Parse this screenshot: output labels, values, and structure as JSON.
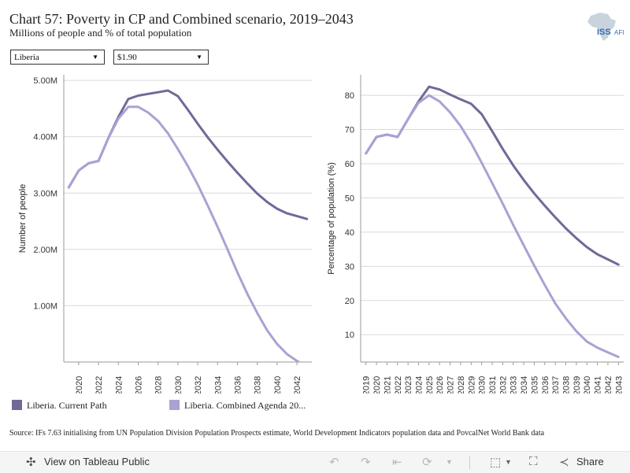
{
  "header": {
    "title": "Chart 57: Poverty in CP and Combined scenario, 2019–2043",
    "subtitle": "Millions of people and % of total population"
  },
  "logo": {
    "text": "ISS",
    "text2": "AFI"
  },
  "filters": {
    "country": {
      "value": "Liberia"
    },
    "threshold": {
      "value": "$1.90"
    }
  },
  "legend": {
    "items": [
      {
        "label": "Liberia. Current Path",
        "color": "#6e6a98"
      },
      {
        "label": "Liberia. Combined Agenda 20...",
        "color": "#a7a3d3"
      }
    ]
  },
  "source": "Source: IFs 7.63 initialising from UN Population Division Population Prospects estimate, World Development Indicators population data and PovcalNet World Bank data",
  "toolbar": {
    "view_label": "View on Tableau Public",
    "share_label": "Share"
  },
  "chart_data": [
    {
      "type": "line",
      "ylabel": "Number of people",
      "xlim": [
        2018.5,
        2043.5
      ],
      "ylim": [
        0,
        5100000
      ],
      "y_ticks": [
        1000000,
        2000000,
        3000000,
        4000000,
        5000000
      ],
      "y_tick_labels": [
        "1.00M",
        "2.00M",
        "3.00M",
        "4.00M",
        "5.00M"
      ],
      "x_ticks": [
        2020,
        2022,
        2024,
        2026,
        2028,
        2030,
        2032,
        2034,
        2036,
        2038,
        2040,
        2042
      ],
      "x_tick_labels": [
        "2020",
        "2022",
        "2024",
        "2026",
        "2028",
        "2030",
        "2032",
        "2034",
        "2036",
        "2038",
        "2040",
        "2042"
      ],
      "grid": true,
      "x": [
        2019,
        2020,
        2021,
        2022,
        2023,
        2024,
        2025,
        2026,
        2027,
        2028,
        2029,
        2030,
        2031,
        2032,
        2033,
        2034,
        2035,
        2036,
        2037,
        2038,
        2039,
        2040,
        2041,
        2042,
        2043
      ],
      "series": [
        {
          "name": "Liberia. Current Path",
          "color": "#6e6a98",
          "values": [
            3100000,
            3400000,
            3530000,
            3570000,
            3980000,
            4350000,
            4670000,
            4730000,
            4760000,
            4790000,
            4820000,
            4720000,
            4480000,
            4230000,
            3990000,
            3770000,
            3560000,
            3360000,
            3170000,
            2990000,
            2840000,
            2720000,
            2640000,
            2590000,
            2540000
          ]
        },
        {
          "name": "Liberia. Combined Agenda 20...",
          "color": "#a7a3d3",
          "values": [
            3100000,
            3400000,
            3530000,
            3570000,
            3980000,
            4320000,
            4530000,
            4530000,
            4430000,
            4280000,
            4060000,
            3780000,
            3480000,
            3150000,
            2780000,
            2400000,
            2000000,
            1590000,
            1210000,
            870000,
            560000,
            320000,
            140000,
            20000,
            -90000
          ]
        }
      ]
    },
    {
      "type": "line",
      "ylabel": "Percentage of population (%)",
      "xlim": [
        2018.5,
        2043.5
      ],
      "ylim": [
        2,
        86
      ],
      "y_ticks": [
        10,
        20,
        30,
        40,
        50,
        60,
        70,
        80
      ],
      "y_tick_labels": [
        "10",
        "20",
        "30",
        "40",
        "50",
        "60",
        "70",
        "80"
      ],
      "x_ticks": [
        2019,
        2020,
        2021,
        2022,
        2023,
        2024,
        2025,
        2026,
        2027,
        2028,
        2029,
        2030,
        2031,
        2032,
        2033,
        2034,
        2035,
        2036,
        2037,
        2038,
        2039,
        2040,
        2041,
        2042,
        2043
      ],
      "x_tick_labels": [
        "2019",
        "2020",
        "2021",
        "2022",
        "2023",
        "2024",
        "2025",
        "2026",
        "2027",
        "2028",
        "2029",
        "2030",
        "2031",
        "2032",
        "2033",
        "2034",
        "2035",
        "2036",
        "2037",
        "2038",
        "2039",
        "2040",
        "2041",
        "2042",
        "2043"
      ],
      "grid": true,
      "x": [
        2019,
        2020,
        2021,
        2022,
        2023,
        2024,
        2025,
        2026,
        2027,
        2028,
        2029,
        2030,
        2031,
        2032,
        2033,
        2034,
        2035,
        2036,
        2037,
        2038,
        2039,
        2040,
        2041,
        2042,
        2043
      ],
      "series": [
        {
          "name": "Liberia. Current Path",
          "color": "#6e6a98",
          "values": [
            63,
            67.8,
            68.5,
            67.8,
            73,
            78.2,
            82.5,
            81.7,
            80.2,
            78.8,
            77.5,
            74.5,
            69.5,
            64.3,
            59.5,
            55.2,
            51.3,
            47.7,
            44.3,
            41.1,
            38.2,
            35.6,
            33.5,
            32,
            30.5
          ]
        },
        {
          "name": "Liberia. Combined Agenda 20...",
          "color": "#a7a3d3",
          "values": [
            63,
            67.8,
            68.5,
            67.8,
            73,
            77.8,
            80,
            78.2,
            75,
            71,
            66,
            60.3,
            54.3,
            48.3,
            42.1,
            36.1,
            30.2,
            24.5,
            19.1,
            14.8,
            11,
            8,
            6.2,
            4.8,
            3.5
          ]
        }
      ]
    }
  ]
}
